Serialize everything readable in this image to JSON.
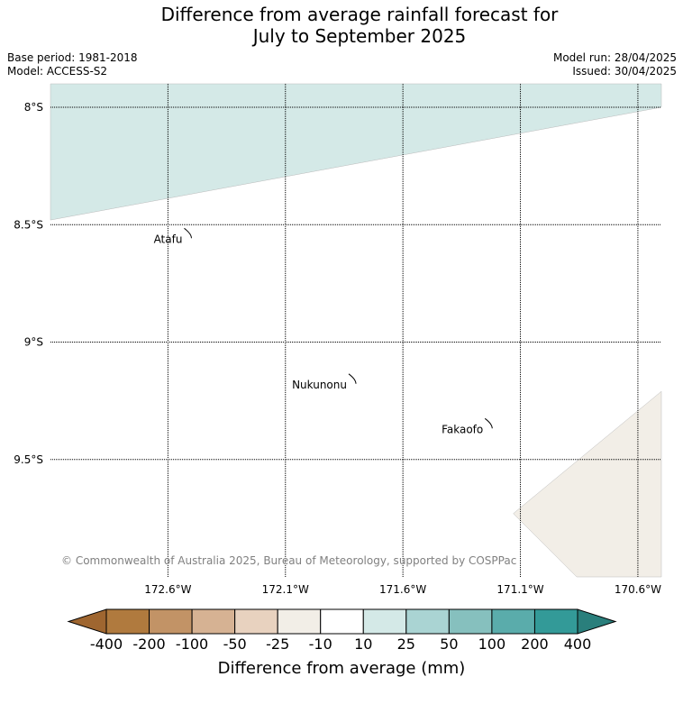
{
  "title": {
    "line1": "Difference from average rainfall forecast for",
    "line2": "July to September 2025"
  },
  "meta": {
    "base_period": "Base period: 1981-2018",
    "model": "Model: ACCESS-S2",
    "model_run": "Model run: 28/04/2025",
    "issued": "Issued: 30/04/2025"
  },
  "map": {
    "lon_range": [
      -173.1,
      -170.5
    ],
    "lat_range": [
      -10.0,
      -7.9
    ],
    "lat_ticks": [
      {
        "value": -8.0,
        "label": "8°S"
      },
      {
        "value": -8.5,
        "label": "8.5°S"
      },
      {
        "value": -9.0,
        "label": "9°S"
      },
      {
        "value": -9.5,
        "label": "9.5°S"
      }
    ],
    "lon_ticks": [
      {
        "value": -172.6,
        "label": "172.6°W"
      },
      {
        "value": -172.1,
        "label": "172.1°W"
      },
      {
        "value": -171.6,
        "label": "171.6°W"
      },
      {
        "value": -171.1,
        "label": "171.1°W"
      },
      {
        "value": -170.6,
        "label": "170.6°W"
      }
    ],
    "places": [
      {
        "name": "Atafu",
        "lon": -172.5,
        "lat": -8.55
      },
      {
        "name": "Nukunonu",
        "lon": -171.8,
        "lat": -9.17
      },
      {
        "name": "Fakaofo",
        "lon": -171.22,
        "lat": -9.36
      }
    ],
    "regions": [
      {
        "category": "10 to 25",
        "color": "#d4e9e7",
        "polygon": [
          [
            -173.1,
            -7.9
          ],
          [
            -170.5,
            -7.9
          ],
          [
            -170.5,
            -8.0
          ],
          [
            -173.1,
            -8.48
          ]
        ]
      },
      {
        "category": "-25 to -10",
        "color": "#f2eee7",
        "polygon": [
          [
            -170.5,
            -9.21
          ],
          [
            -170.5,
            -10.0
          ],
          [
            -170.86,
            -10.0
          ],
          [
            -171.13,
            -9.73
          ]
        ]
      }
    ],
    "copyright": "© Commonwealth of Australia 2025, Bureau of Meteorology, supported by COSPPac"
  },
  "colorbar": {
    "label": "Difference from average (mm)",
    "boundaries": [
      "-400",
      "-200",
      "-100",
      "-50",
      "-25",
      "-10",
      "10",
      "25",
      "50",
      "100",
      "200",
      "400"
    ],
    "colors": [
      "#b07a3e",
      "#c29366",
      "#d6b293",
      "#e8d2bf",
      "#f2eee7",
      "#ffffff",
      "#d4e9e7",
      "#aad4d3",
      "#86c0be",
      "#5aacab",
      "#339a98"
    ],
    "under_color": "#9f6630",
    "over_color": "#2a7f7c"
  }
}
